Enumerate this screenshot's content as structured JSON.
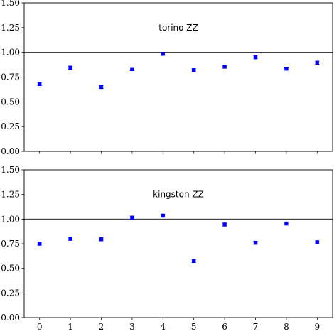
{
  "chart_data": [
    {
      "type": "scatter",
      "title": "torino ZZ",
      "x": [
        0,
        1,
        2,
        3,
        4,
        5,
        6,
        7,
        8,
        9
      ],
      "y": [
        0.68,
        0.845,
        0.65,
        0.83,
        0.985,
        0.82,
        0.855,
        0.95,
        0.835,
        0.895
      ],
      "yerr": [
        0.015,
        0.015,
        0.015,
        0.015,
        0.015,
        0.015,
        0.015,
        0.015,
        0.015,
        0.015
      ],
      "reference_line": 1.0,
      "xlim": [
        -0.5,
        9.5
      ],
      "ylim": [
        0,
        1.5
      ],
      "yticks": [
        "0.00",
        "0.25",
        "0.50",
        "0.75",
        "1.00",
        "1.25",
        "1.50"
      ],
      "xticks": [],
      "marker_color": "#0000ff"
    },
    {
      "type": "scatter",
      "title": "kingston ZZ",
      "x": [
        0,
        1,
        2,
        3,
        4,
        5,
        6,
        7,
        8,
        9
      ],
      "y": [
        0.75,
        0.8,
        0.795,
        1.015,
        1.035,
        0.575,
        0.945,
        0.76,
        0.955,
        0.765
      ],
      "yerr": [
        0.015,
        0.015,
        0.015,
        0.015,
        0.015,
        0.015,
        0.015,
        0.015,
        0.015,
        0.015
      ],
      "reference_line": 1.0,
      "xlim": [
        -0.5,
        9.5
      ],
      "ylim": [
        0,
        1.5
      ],
      "yticks": [
        "0.00",
        "0.25",
        "0.50",
        "0.75",
        "1.00",
        "1.25",
        "1.50"
      ],
      "xticks": [
        "0",
        "1",
        "2",
        "3",
        "4",
        "5",
        "6",
        "7",
        "8",
        "9"
      ],
      "marker_color": "#0000ff"
    }
  ]
}
